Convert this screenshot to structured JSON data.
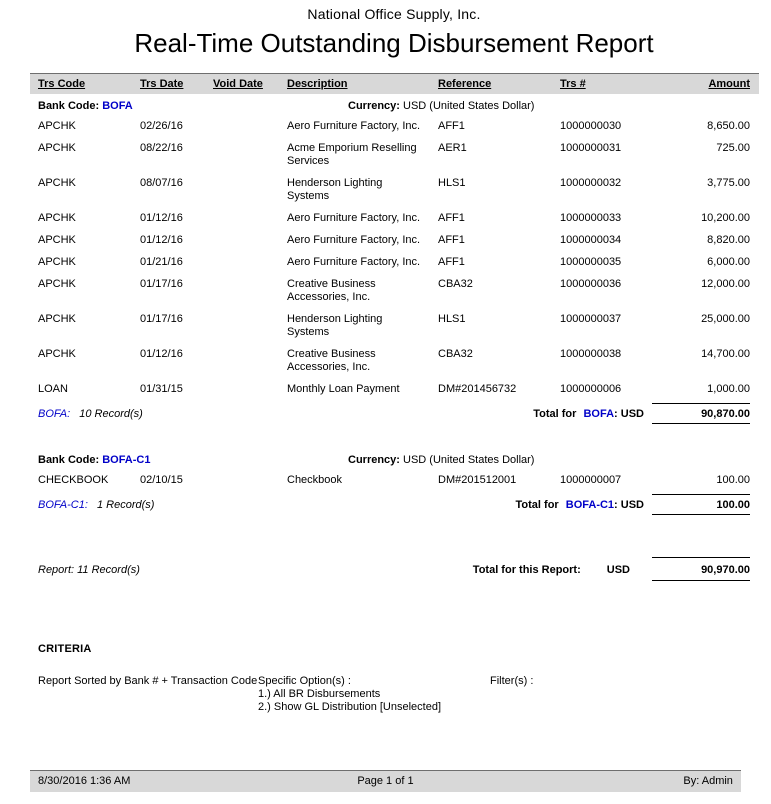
{
  "header": {
    "company": "National Office Supply, Inc.",
    "title": "Real-Time Outstanding Disbursement Report"
  },
  "columns": [
    "Trs Code",
    "Trs Date",
    "Void Date",
    "Description",
    "Reference",
    "Trs #",
    "Amount"
  ],
  "labels": {
    "bank_code": "Bank Code:",
    "currency": "Currency:",
    "total_for": "Total for",
    "total_suffix": ": USD"
  },
  "colors": {
    "link_blue": "#0000c8",
    "band_gray": "#d8d8d8"
  },
  "groups": [
    {
      "bank_code": "BOFA",
      "currency": "USD (United States Dollar)",
      "records_bank": "BOFA:",
      "records_count": "10 Record(s)",
      "total": "90,870.00",
      "rows": [
        {
          "code": "APCHK",
          "date": "02/26/16",
          "void": "",
          "desc": "Aero Furniture Factory, Inc.",
          "ref": "AFF1",
          "num": "1000000030",
          "amt": "8,650.00"
        },
        {
          "code": "APCHK",
          "date": "08/22/16",
          "void": "",
          "desc": "Acme Emporium Reselling Services",
          "ref": "AER1",
          "num": "1000000031",
          "amt": "725.00"
        },
        {
          "code": "APCHK",
          "date": "08/07/16",
          "void": "",
          "desc": "Henderson Lighting Systems",
          "ref": "HLS1",
          "num": "1000000032",
          "amt": "3,775.00"
        },
        {
          "code": "APCHK",
          "date": "01/12/16",
          "void": "",
          "desc": "Aero Furniture Factory, Inc.",
          "ref": "AFF1",
          "num": "1000000033",
          "amt": "10,200.00"
        },
        {
          "code": "APCHK",
          "date": "01/12/16",
          "void": "",
          "desc": "Aero Furniture Factory, Inc.",
          "ref": "AFF1",
          "num": "1000000034",
          "amt": "8,820.00"
        },
        {
          "code": "APCHK",
          "date": "01/21/16",
          "void": "",
          "desc": "Aero Furniture Factory, Inc.",
          "ref": "AFF1",
          "num": "1000000035",
          "amt": "6,000.00"
        },
        {
          "code": "APCHK",
          "date": "01/17/16",
          "void": "",
          "desc": "Creative Business Accessories, Inc.",
          "ref": "CBA32",
          "num": "1000000036",
          "amt": "12,000.00"
        },
        {
          "code": "APCHK",
          "date": "01/17/16",
          "void": "",
          "desc": "Henderson Lighting Systems",
          "ref": "HLS1",
          "num": "1000000037",
          "amt": "25,000.00"
        },
        {
          "code": "APCHK",
          "date": "01/12/16",
          "void": "",
          "desc": "Creative Business Accessories, Inc.",
          "ref": "CBA32",
          "num": "1000000038",
          "amt": "14,700.00"
        },
        {
          "code": "LOAN",
          "date": "01/31/15",
          "void": "",
          "desc": "Monthly Loan Payment",
          "ref": "DM#201456732",
          "num": "1000000006",
          "amt": "1,000.00"
        }
      ]
    },
    {
      "bank_code": "BOFA-C1",
      "currency": "USD (United States Dollar)",
      "records_bank": "BOFA-C1:",
      "records_count": "1 Record(s)",
      "total": "100.00",
      "rows": [
        {
          "code": "CHECKBOOK",
          "date": "02/10/15",
          "void": "",
          "desc": "Checkbook",
          "ref": "DM#201512001",
          "num": "1000000007",
          "amt": "100.00"
        }
      ]
    }
  ],
  "report_total": {
    "records": "Report: 11 Record(s)",
    "label": "Total for this Report:",
    "currency": "USD",
    "amount": "90,970.00"
  },
  "criteria": {
    "heading": "CRITERIA",
    "sorted_by": "Report Sorted by Bank # + Transaction Code",
    "specific_label": "Specific Option(s) :",
    "options": [
      "1.) All BR Disbursements",
      "2.) Show GL Distribution [Unselected]"
    ],
    "filters_label": "Filter(s) :"
  },
  "footer": {
    "datetime": "8/30/2016 1:36 AM",
    "page": "Page 1 of 1",
    "by": "By: Admin"
  }
}
